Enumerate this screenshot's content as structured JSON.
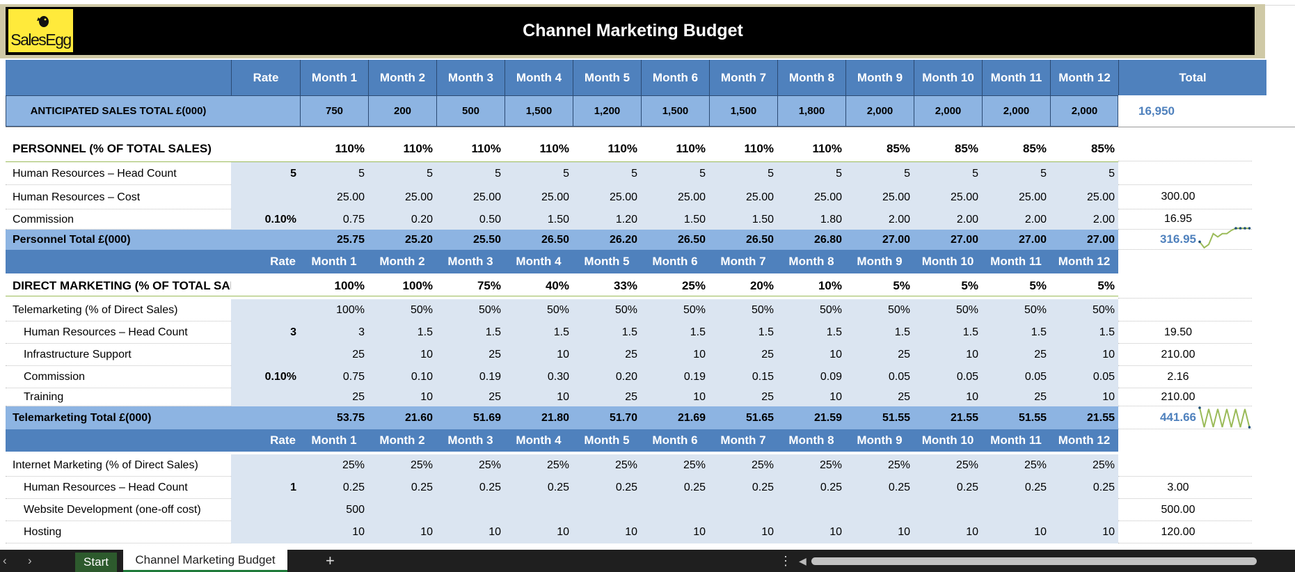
{
  "app": {
    "title": "Channel Marketing Budget",
    "logo_text": "SalesEgg"
  },
  "months": [
    "Month 1",
    "Month 2",
    "Month 3",
    "Month 4",
    "Month 5",
    "Month 6",
    "Month 7",
    "Month 8",
    "Month 9",
    "Month 10",
    "Month 11",
    "Month 12"
  ],
  "header": {
    "rate": "Rate",
    "total": "Total"
  },
  "anticipated": {
    "label": "ANTICIPATED SALES TOTAL £(000)",
    "values": [
      "750",
      "200",
      "500",
      "1,500",
      "1,200",
      "1,500",
      "1,500",
      "1,800",
      "2,000",
      "2,000",
      "2,000",
      "2,000"
    ],
    "total": "16,950"
  },
  "personnel": {
    "title": {
      "label": "PERSONNEL (% OF TOTAL SALES)",
      "values": [
        "110%",
        "110%",
        "110%",
        "110%",
        "110%",
        "110%",
        "110%",
        "110%",
        "85%",
        "85%",
        "85%",
        "85%"
      ]
    },
    "head_count": {
      "label": "Human Resources – Head Count",
      "rate": "5",
      "values": [
        "5",
        "5",
        "5",
        "5",
        "5",
        "5",
        "5",
        "5",
        "5",
        "5",
        "5",
        "5"
      ]
    },
    "cost": {
      "label": "Human Resources – Cost",
      "values": [
        "25.00",
        "25.00",
        "25.00",
        "25.00",
        "25.00",
        "25.00",
        "25.00",
        "25.00",
        "25.00",
        "25.00",
        "25.00",
        "25.00"
      ],
      "total": "300.00"
    },
    "commission": {
      "label": "Commission",
      "rate": "0.10%",
      "values": [
        "0.75",
        "0.20",
        "0.50",
        "1.50",
        "1.20",
        "1.50",
        "1.50",
        "1.80",
        "2.00",
        "2.00",
        "2.00",
        "2.00"
      ],
      "total": "16.95"
    },
    "total_row": {
      "label": "Personnel Total £(000)",
      "values": [
        "25.75",
        "25.20",
        "25.50",
        "26.50",
        "26.20",
        "26.50",
        "26.50",
        "26.80",
        "27.00",
        "27.00",
        "27.00",
        "27.00"
      ],
      "total": "316.95",
      "sparkline": [
        25.75,
        25.2,
        25.5,
        26.5,
        26.2,
        26.5,
        26.5,
        26.8,
        27,
        27,
        27,
        27
      ]
    }
  },
  "direct": {
    "title": {
      "label": "DIRECT MARKETING (% OF TOTAL SALES)",
      "values": [
        "100%",
        "100%",
        "75%",
        "40%",
        "33%",
        "25%",
        "20%",
        "10%",
        "5%",
        "5%",
        "5%",
        "5%"
      ]
    },
    "telemarketing": {
      "label": "Telemarketing (% of Direct Sales)",
      "values": [
        "100%",
        "50%",
        "50%",
        "50%",
        "50%",
        "50%",
        "50%",
        "50%",
        "50%",
        "50%",
        "50%",
        "50%"
      ]
    },
    "tm_head_count": {
      "label": "Human Resources – Head Count",
      "rate": "3",
      "values": [
        "3",
        "1.5",
        "1.5",
        "1.5",
        "1.5",
        "1.5",
        "1.5",
        "1.5",
        "1.5",
        "1.5",
        "1.5",
        "1.5"
      ],
      "total": "19.50"
    },
    "tm_infra": {
      "label": "Infrastructure Support",
      "values": [
        "25",
        "10",
        "25",
        "10",
        "25",
        "10",
        "25",
        "10",
        "25",
        "10",
        "25",
        "10"
      ],
      "total": "210.00"
    },
    "tm_commission": {
      "label": "Commission",
      "rate": "0.10%",
      "values": [
        "0.75",
        "0.10",
        "0.19",
        "0.30",
        "0.20",
        "0.19",
        "0.15",
        "0.09",
        "0.05",
        "0.05",
        "0.05",
        "0.05"
      ],
      "total": "2.16"
    },
    "tm_training": {
      "label": "Training",
      "values": [
        "25",
        "10",
        "25",
        "10",
        "25",
        "10",
        "25",
        "10",
        "25",
        "10",
        "25",
        "10"
      ],
      "total": "210.00"
    },
    "tm_total": {
      "label": "Telemarketing Total £(000)",
      "values": [
        "53.75",
        "21.60",
        "51.69",
        "21.80",
        "51.70",
        "21.69",
        "51.65",
        "21.59",
        "51.55",
        "21.55",
        "51.55",
        "21.55"
      ],
      "total": "441.66",
      "sparkline": [
        53.75,
        21.6,
        51.69,
        21.8,
        51.7,
        21.69,
        51.65,
        21.59,
        51.55,
        21.55,
        51.55,
        21.55
      ]
    },
    "internet": {
      "label": "Internet Marketing (% of Direct Sales)",
      "values": [
        "25%",
        "25%",
        "25%",
        "25%",
        "25%",
        "25%",
        "25%",
        "25%",
        "25%",
        "25%",
        "25%",
        "25%"
      ]
    },
    "im_head_count": {
      "label": "Human Resources – Head Count",
      "rate": "1",
      "values": [
        "0.25",
        "0.25",
        "0.25",
        "0.25",
        "0.25",
        "0.25",
        "0.25",
        "0.25",
        "0.25",
        "0.25",
        "0.25",
        "0.25"
      ],
      "total": "3.00"
    },
    "im_website": {
      "label": "Website Development (one-off cost)",
      "values": [
        "500",
        "",
        "",
        "",
        "",
        "",
        "",
        "",
        "",
        "",
        "",
        ""
      ],
      "total": "500.00"
    },
    "im_hosting": {
      "label": "Hosting",
      "values": [
        "10",
        "10",
        "10",
        "10",
        "10",
        "10",
        "10",
        "10",
        "10",
        "10",
        "10",
        "10"
      ],
      "total": "120.00"
    }
  },
  "tabs": {
    "start": "Start",
    "active": "Channel Marketing Budget",
    "add": "+",
    "more": "⋮"
  },
  "nav": {
    "prev": "‹",
    "next": "›"
  },
  "colors": {
    "header_blue": "#4f81bd",
    "light_blue": "#dbe5f1",
    "mid_blue": "#8db4e2",
    "total_text": "#4f81bd",
    "spark_green": "#9bbb59"
  }
}
